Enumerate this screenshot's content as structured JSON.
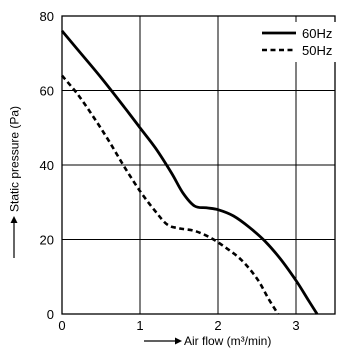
{
  "chart_data": {
    "type": "line",
    "title": "",
    "xlabel": "Air flow (m³/min)",
    "ylabel": "Static pressure (Pa)",
    "xlim": [
      0,
      3.5
    ],
    "ylim": [
      0,
      80
    ],
    "xticks": [
      0,
      1,
      2,
      3
    ],
    "yticks": [
      0,
      20,
      40,
      60,
      80
    ],
    "grid": true,
    "legend_position": "top-right",
    "series": [
      {
        "name": "60Hz",
        "style": "solid",
        "color": "#000000",
        "points": [
          [
            0,
            76
          ],
          [
            0.2,
            71
          ],
          [
            0.5,
            63.5
          ],
          [
            0.8,
            55.5
          ],
          [
            1.0,
            50
          ],
          [
            1.2,
            44.5
          ],
          [
            1.4,
            38
          ],
          [
            1.55,
            32.5
          ],
          [
            1.7,
            29
          ],
          [
            1.85,
            28.5
          ],
          [
            2.0,
            28
          ],
          [
            2.2,
            26.3
          ],
          [
            2.4,
            23.3
          ],
          [
            2.6,
            19.6
          ],
          [
            2.8,
            14.8
          ],
          [
            3.0,
            9
          ],
          [
            3.15,
            4
          ],
          [
            3.27,
            0
          ]
        ]
      },
      {
        "name": "50Hz",
        "style": "dashed",
        "color": "#000000",
        "points": [
          [
            0,
            64
          ],
          [
            0.2,
            59
          ],
          [
            0.4,
            53
          ],
          [
            0.6,
            46.5
          ],
          [
            0.8,
            39.5
          ],
          [
            1.0,
            33
          ],
          [
            1.2,
            27.5
          ],
          [
            1.35,
            24
          ],
          [
            1.5,
            23
          ],
          [
            1.7,
            22.3
          ],
          [
            1.9,
            20.5
          ],
          [
            2.1,
            17.8
          ],
          [
            2.3,
            14.5
          ],
          [
            2.5,
            9.5
          ],
          [
            2.65,
            4
          ],
          [
            2.77,
            0
          ]
        ]
      }
    ]
  }
}
